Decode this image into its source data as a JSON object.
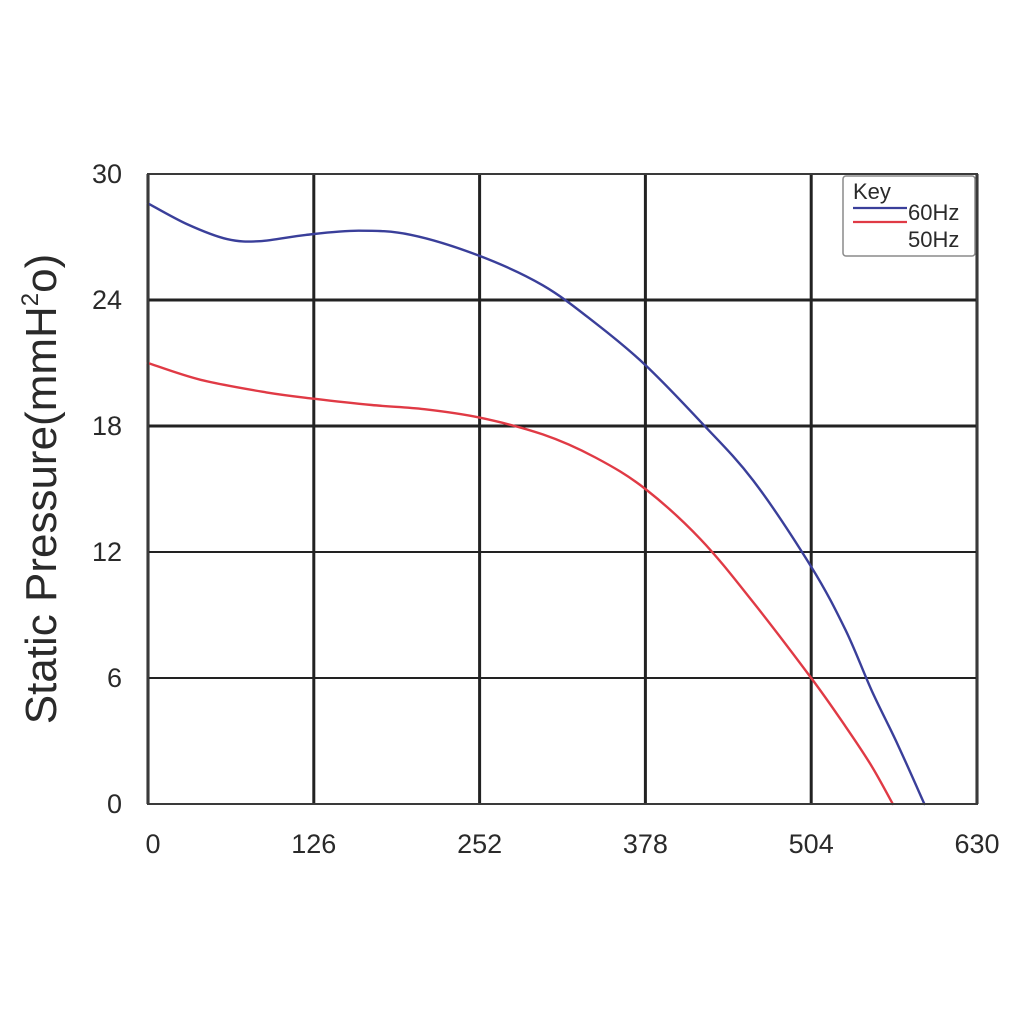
{
  "chart_data": {
    "type": "line",
    "title": "",
    "xlabel": "",
    "ylabel": {
      "prefix": "Static Pressure(mmH",
      "superscript": "2",
      "suffix": "o)"
    },
    "xlim": [
      0,
      630
    ],
    "ylim": [
      0,
      30
    ],
    "x_ticks": [
      0,
      126,
      252,
      378,
      504,
      630
    ],
    "y_ticks": [
      0,
      6,
      12,
      18,
      24,
      30
    ],
    "grid": true,
    "legend": {
      "title": "Key",
      "placement": "top-right",
      "entries": [
        "60Hz",
        "50Hz"
      ]
    },
    "series": [
      {
        "name": "60Hz",
        "color": "#3a3f9a",
        "points": [
          [
            0,
            28.6
          ],
          [
            30,
            27.6
          ],
          [
            60,
            26.9
          ],
          [
            85,
            26.8
          ],
          [
            120,
            27.1
          ],
          [
            160,
            27.3
          ],
          [
            200,
            27.1
          ],
          [
            252,
            26.1
          ],
          [
            300,
            24.7
          ],
          [
            340,
            22.9
          ],
          [
            378,
            20.9
          ],
          [
            420,
            18.2
          ],
          [
            460,
            15.4
          ],
          [
            504,
            11.3
          ],
          [
            530,
            8.3
          ],
          [
            550,
            5.4
          ],
          [
            570,
            2.8
          ],
          [
            590,
            0
          ]
        ]
      },
      {
        "name": "50Hz",
        "color": "#e03a45",
        "points": [
          [
            0,
            21.0
          ],
          [
            40,
            20.2
          ],
          [
            90,
            19.6
          ],
          [
            126,
            19.3
          ],
          [
            170,
            19.0
          ],
          [
            210,
            18.8
          ],
          [
            252,
            18.4
          ],
          [
            300,
            17.6
          ],
          [
            340,
            16.5
          ],
          [
            378,
            15.0
          ],
          [
            420,
            12.6
          ],
          [
            460,
            9.6
          ],
          [
            504,
            6.0
          ],
          [
            530,
            3.7
          ],
          [
            550,
            1.8
          ],
          [
            566,
            0
          ]
        ]
      }
    ]
  }
}
